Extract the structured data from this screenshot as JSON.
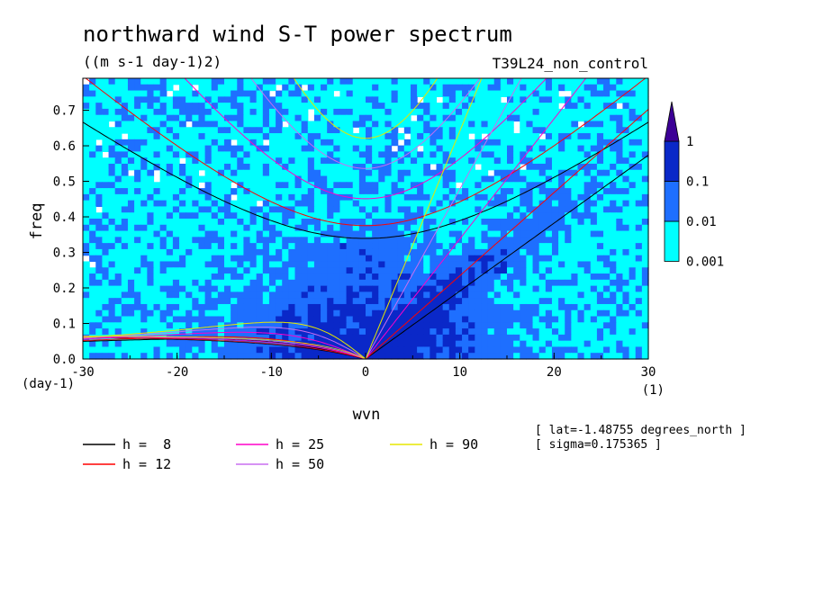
{
  "chart_data": {
    "type": "heatmap",
    "title": "northward wind S-T power spectrum",
    "units": "((m s-1 day-1)2)",
    "run_name": "T39L24_non_control",
    "xlabel": "wvn",
    "ylabel": "freq",
    "x_unit": "(1)",
    "y_unit": "(day-1)",
    "xlim": [
      -30,
      30
    ],
    "ylim": [
      0.0,
      0.79
    ],
    "x_ticks": [
      "-30",
      "-20",
      "-10",
      "0",
      "10",
      "20",
      "30"
    ],
    "x_tick_values": [
      -30,
      -20,
      -10,
      0,
      10,
      20,
      30
    ],
    "y_ticks": [
      "0.0",
      "0.1",
      "0.2",
      "0.3",
      "0.4",
      "0.5",
      "0.6",
      "0.7"
    ],
    "y_tick_values": [
      0.0,
      0.1,
      0.2,
      0.3,
      0.4,
      0.5,
      0.6,
      0.7
    ],
    "colorbar": {
      "levels": [
        "0.001",
        "0.01",
        "0.1",
        "1"
      ],
      "level_values": [
        0.001,
        0.01,
        0.1,
        1
      ],
      "colors": [
        "#00ffff",
        "#1e6fff",
        "#0a28c8",
        "#3c0096"
      ],
      "extend": "max"
    },
    "equivalent_depths": [
      {
        "label": "h =  8",
        "h": 8,
        "color": "#000000"
      },
      {
        "label": "h = 12",
        "h": 12,
        "color": "#ff0000"
      },
      {
        "label": "h = 25",
        "h": 25,
        "color": "#ff00c8"
      },
      {
        "label": "h = 50",
        "h": 50,
        "color": "#c86ef0"
      },
      {
        "label": "h = 90",
        "h": 90,
        "color": "#e6e600"
      }
    ],
    "annotations": [
      "[ lat=-1.48755 degrees_north ]",
      "[ sigma=0.175365 ]"
    ]
  }
}
